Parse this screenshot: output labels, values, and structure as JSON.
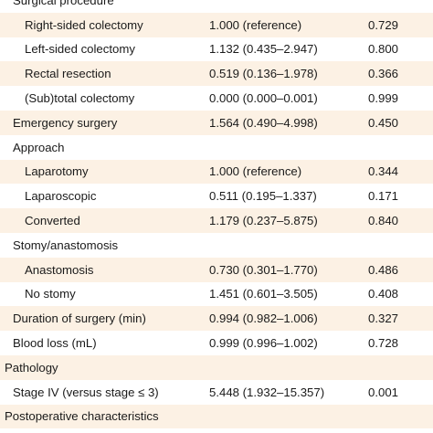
{
  "rows": [
    {
      "label": "Surgical procedure",
      "or": "",
      "p": "",
      "level": 1,
      "shade": false
    },
    {
      "label": "Right-sided colectomy",
      "or": "1.000 (reference)",
      "p": "0.729",
      "level": 2,
      "shade": true
    },
    {
      "label": "Left-sided colectomy",
      "or": "1.132 (0.435–2.947)",
      "p": "0.800",
      "level": 2,
      "shade": false
    },
    {
      "label": "Rectal resection",
      "or": "0.519 (0.136–1.978)",
      "p": "0.366",
      "level": 2,
      "shade": true
    },
    {
      "label": "(Sub)total colectomy",
      "or": "0.000 (0.000–0.001)",
      "p": "0.999",
      "level": 2,
      "shade": false
    },
    {
      "label": "Emergency surgery",
      "or": "1.564 (0.490–4.998)",
      "p": "0.450",
      "level": 1,
      "shade": true
    },
    {
      "label": "Approach",
      "or": "",
      "p": "",
      "level": 1,
      "shade": false
    },
    {
      "label": "Laparotomy",
      "or": "1.000 (reference)",
      "p": "0.344",
      "level": 2,
      "shade": true
    },
    {
      "label": "Laparoscopic",
      "or": "0.511 (0.195–1.337)",
      "p": "0.171",
      "level": 2,
      "shade": false
    },
    {
      "label": "Converted",
      "or": "1.179 (0.237–5.875)",
      "p": "0.840",
      "level": 2,
      "shade": true
    },
    {
      "label": "Stomy/anastomosis",
      "or": "",
      "p": "",
      "level": 1,
      "shade": false
    },
    {
      "label": "Anastomosis",
      "or": "0.730 (0.301–1.770)",
      "p": "0.486",
      "level": 2,
      "shade": true
    },
    {
      "label": "No stomy",
      "or": "1.451 (0.601–3.505)",
      "p": "0.408",
      "level": 2,
      "shade": false
    },
    {
      "label": "Duration of surgery (min)",
      "or": "0.994 (0.982–1.006)",
      "p": "0.327",
      "level": 1,
      "shade": true
    },
    {
      "label": "Blood loss (mL)",
      "or": "0.999 (0.996–1.002)",
      "p": "0.728",
      "level": 1,
      "shade": false
    },
    {
      "label": "Pathology",
      "or": "",
      "p": "",
      "level": 0,
      "shade": true
    },
    {
      "label": "Stage IV (versus stage ≤ 3)",
      "or": "5.448 (1.932–15.357)",
      "p": "0.001",
      "level": 1,
      "shade": false
    },
    {
      "label": "Postoperative characteristics",
      "or": "",
      "p": "",
      "level": 0,
      "shade": true
    }
  ]
}
